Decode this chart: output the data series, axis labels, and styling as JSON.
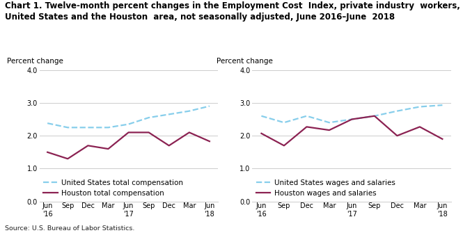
{
  "title_line1": "Chart 1. Twelve-month percent changes in the Employment Cost  Index, private industry  workers,",
  "title_line2": "United States and the Houston  area, not seasonally adjusted, June 2016–June  2018",
  "source": "Source: U.S. Bureau of Labor Statistics.",
  "x_positions": [
    0,
    1,
    2,
    3,
    4,
    5,
    6,
    7,
    8
  ],
  "chart1": {
    "us_total": [
      2.38,
      2.25,
      2.25,
      2.25,
      2.35,
      2.55,
      2.65,
      2.75,
      2.9
    ],
    "houston_total": [
      1.5,
      1.3,
      1.7,
      1.6,
      2.1,
      2.1,
      1.7,
      2.1,
      1.83
    ],
    "legend1": "United States total compensation",
    "legend2": "Houston total compensation",
    "ylabel": "Percent change",
    "ylim": [
      0.0,
      4.0
    ],
    "yticks": [
      0.0,
      1.0,
      2.0,
      3.0,
      4.0
    ]
  },
  "chart2": {
    "us_wages": [
      2.6,
      2.4,
      2.6,
      2.4,
      2.5,
      2.6,
      2.75,
      2.88,
      2.93
    ],
    "houston_wages": [
      2.07,
      1.7,
      2.27,
      2.17,
      2.5,
      2.6,
      2.0,
      2.27,
      1.9
    ],
    "legend1": "United States wages and salaries",
    "legend2": "Houston wages and salaries",
    "ylabel": "Percent change",
    "ylim": [
      0.0,
      4.0
    ],
    "yticks": [
      0.0,
      1.0,
      2.0,
      3.0,
      4.0
    ]
  },
  "us_color": "#87CEEB",
  "houston_color": "#8B2252",
  "us_linestyle": "--",
  "houston_linestyle": "-",
  "linewidth": 1.6,
  "grid_color": "#CCCCCC",
  "bg_color": "#FFFFFF",
  "title_fontsize": 8.5,
  "label_fontsize": 7.5,
  "tick_fontsize": 7.0,
  "legend_fontsize": 7.5
}
